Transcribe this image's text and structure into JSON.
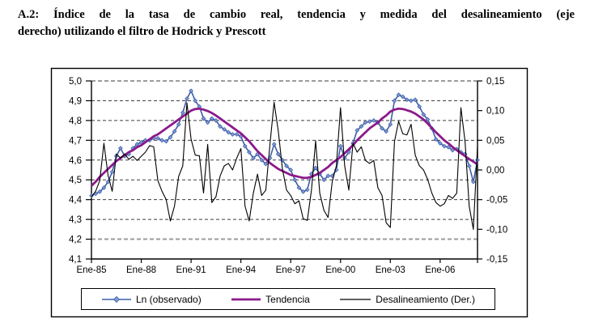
{
  "title": {
    "line1": "A.2: Índice de la tasa de cambio real, tendencia y medida del desalineamiento (eje",
    "line2": "derecho) utilizando el filtro de Hodrick y Prescott"
  },
  "chart_data": {
    "type": "line",
    "x": {
      "unit": "monthly (sampled quarterly)",
      "start": "Ene-85",
      "end": "Jun-08",
      "tick_labels": [
        "Ene-85",
        "Ene-88",
        "Ene-91",
        "Ene-94",
        "Ene-97",
        "Ene-00",
        "Ene-03",
        "Ene-06"
      ]
    },
    "y_left": {
      "min": 4.1,
      "max": 5.0,
      "step": 0.1,
      "tick_labels": [
        "5,0",
        "4,9",
        "4,8",
        "4,7",
        "4,6",
        "4,5",
        "4,4",
        "4,3",
        "4,2",
        "4,1"
      ]
    },
    "y_right": {
      "min": -0.15,
      "max": 0.15,
      "step": 0.05,
      "tick_labels": [
        "0,15",
        "0,10",
        "0,05",
        "0,00",
        "-0,05",
        "-0,10",
        "-0,15"
      ]
    },
    "grid": {
      "dashed": true,
      "emphasized_levels": [
        5.0,
        4.2
      ]
    },
    "legend": {
      "position": "bottom",
      "entries": [
        "Ln (observado)",
        "Tendencia",
        "Desalineamiento (Der.)"
      ]
    },
    "series": [
      {
        "name": "Ln (observado)",
        "axis": "left",
        "marker": "diamond",
        "values": [
          4.42,
          4.43,
          4.44,
          4.46,
          4.49,
          4.54,
          4.62,
          4.66,
          4.62,
          4.63,
          4.66,
          4.68,
          4.69,
          4.7,
          4.7,
          4.71,
          4.71,
          4.7,
          4.695,
          4.715,
          4.745,
          4.78,
          4.84,
          4.91,
          4.95,
          4.9,
          4.87,
          4.81,
          4.79,
          4.81,
          4.8,
          4.77,
          4.755,
          4.74,
          4.73,
          4.73,
          4.72,
          4.67,
          4.64,
          4.61,
          4.63,
          4.6,
          4.58,
          4.61,
          4.68,
          4.63,
          4.6,
          4.57,
          4.55,
          4.5,
          4.46,
          4.44,
          4.45,
          4.53,
          4.56,
          4.53,
          4.5,
          4.52,
          4.52,
          4.55,
          4.67,
          4.61,
          4.64,
          4.685,
          4.75,
          4.77,
          4.79,
          4.795,
          4.8,
          4.79,
          4.76,
          4.745,
          4.78,
          4.9,
          4.93,
          4.92,
          4.905,
          4.9,
          4.905,
          4.87,
          4.83,
          4.805,
          4.76,
          4.705,
          4.685,
          4.67,
          4.665,
          4.65,
          4.655,
          4.64,
          4.63,
          4.57,
          4.49,
          4.6
        ]
      },
      {
        "name": "Tendencia",
        "axis": "left",
        "marker": "none",
        "values": [
          4.47,
          4.49,
          4.515,
          4.535,
          4.555,
          4.575,
          4.595,
          4.61,
          4.625,
          4.64,
          4.65,
          4.665,
          4.675,
          4.69,
          4.705,
          4.72,
          4.73,
          4.745,
          4.76,
          4.775,
          4.79,
          4.805,
          4.82,
          4.835,
          4.85,
          4.858,
          4.86,
          4.855,
          4.848,
          4.838,
          4.825,
          4.81,
          4.795,
          4.78,
          4.765,
          4.75,
          4.735,
          4.715,
          4.695,
          4.67,
          4.645,
          4.625,
          4.605,
          4.585,
          4.57,
          4.555,
          4.545,
          4.535,
          4.525,
          4.52,
          4.515,
          4.51,
          4.51,
          4.515,
          4.525,
          4.535,
          4.55,
          4.565,
          4.585,
          4.6,
          4.615,
          4.635,
          4.655,
          4.675,
          4.7,
          4.72,
          4.74,
          4.76,
          4.775,
          4.79,
          4.81,
          4.825,
          4.845,
          4.855,
          4.86,
          4.858,
          4.852,
          4.845,
          4.835,
          4.82,
          4.805,
          4.785,
          4.762,
          4.74,
          4.72,
          4.7,
          4.684,
          4.666,
          4.65,
          4.635,
          4.62,
          4.605,
          4.592,
          4.578
        ]
      },
      {
        "name": "Desalineamiento (Der.)",
        "axis": "right",
        "marker": "none",
        "values": [
          -0.045,
          -0.036,
          -0.018,
          0.045,
          -0.009,
          -0.036,
          0.027,
          0.02,
          0.027,
          0.018,
          0.023,
          0.016,
          0.023,
          0.03,
          0.041,
          0.039,
          -0.018,
          -0.036,
          -0.05,
          -0.086,
          -0.061,
          -0.011,
          0.007,
          0.113,
          0.052,
          0.025,
          0.024,
          -0.039,
          0.043,
          -0.055,
          -0.045,
          -0.01,
          0.007,
          0.011,
          0.0,
          0.02,
          0.036,
          -0.061,
          -0.086,
          -0.039,
          -0.007,
          -0.043,
          -0.034,
          0.043,
          0.114,
          0.066,
          0.002,
          -0.034,
          -0.043,
          -0.057,
          -0.052,
          -0.082,
          -0.085,
          -0.034,
          0.049,
          -0.039,
          -0.068,
          -0.08,
          -0.02,
          0.007,
          0.105,
          0.007,
          -0.034,
          0.045,
          0.03,
          0.039,
          0.016,
          0.011,
          0.016,
          -0.03,
          -0.043,
          -0.089,
          -0.097,
          0.048,
          0.082,
          0.061,
          0.059,
          0.077,
          0.025,
          0.007,
          0.0,
          -0.016,
          -0.039,
          -0.055,
          -0.061,
          -0.057,
          -0.043,
          -0.048,
          -0.039,
          0.105,
          0.048,
          -0.061,
          -0.1,
          0.04
        ]
      }
    ]
  },
  "colors": {
    "observado_line": "#3d5da8",
    "observado_marker": "#7f9bd1",
    "tendencia": "#8b1a8b",
    "desalineamiento": "#000000",
    "grid": "#3f3f3f",
    "grid_emphasis": "#9b9b9b",
    "axis": "#000000",
    "frame": "#000000",
    "text": "#000000"
  }
}
